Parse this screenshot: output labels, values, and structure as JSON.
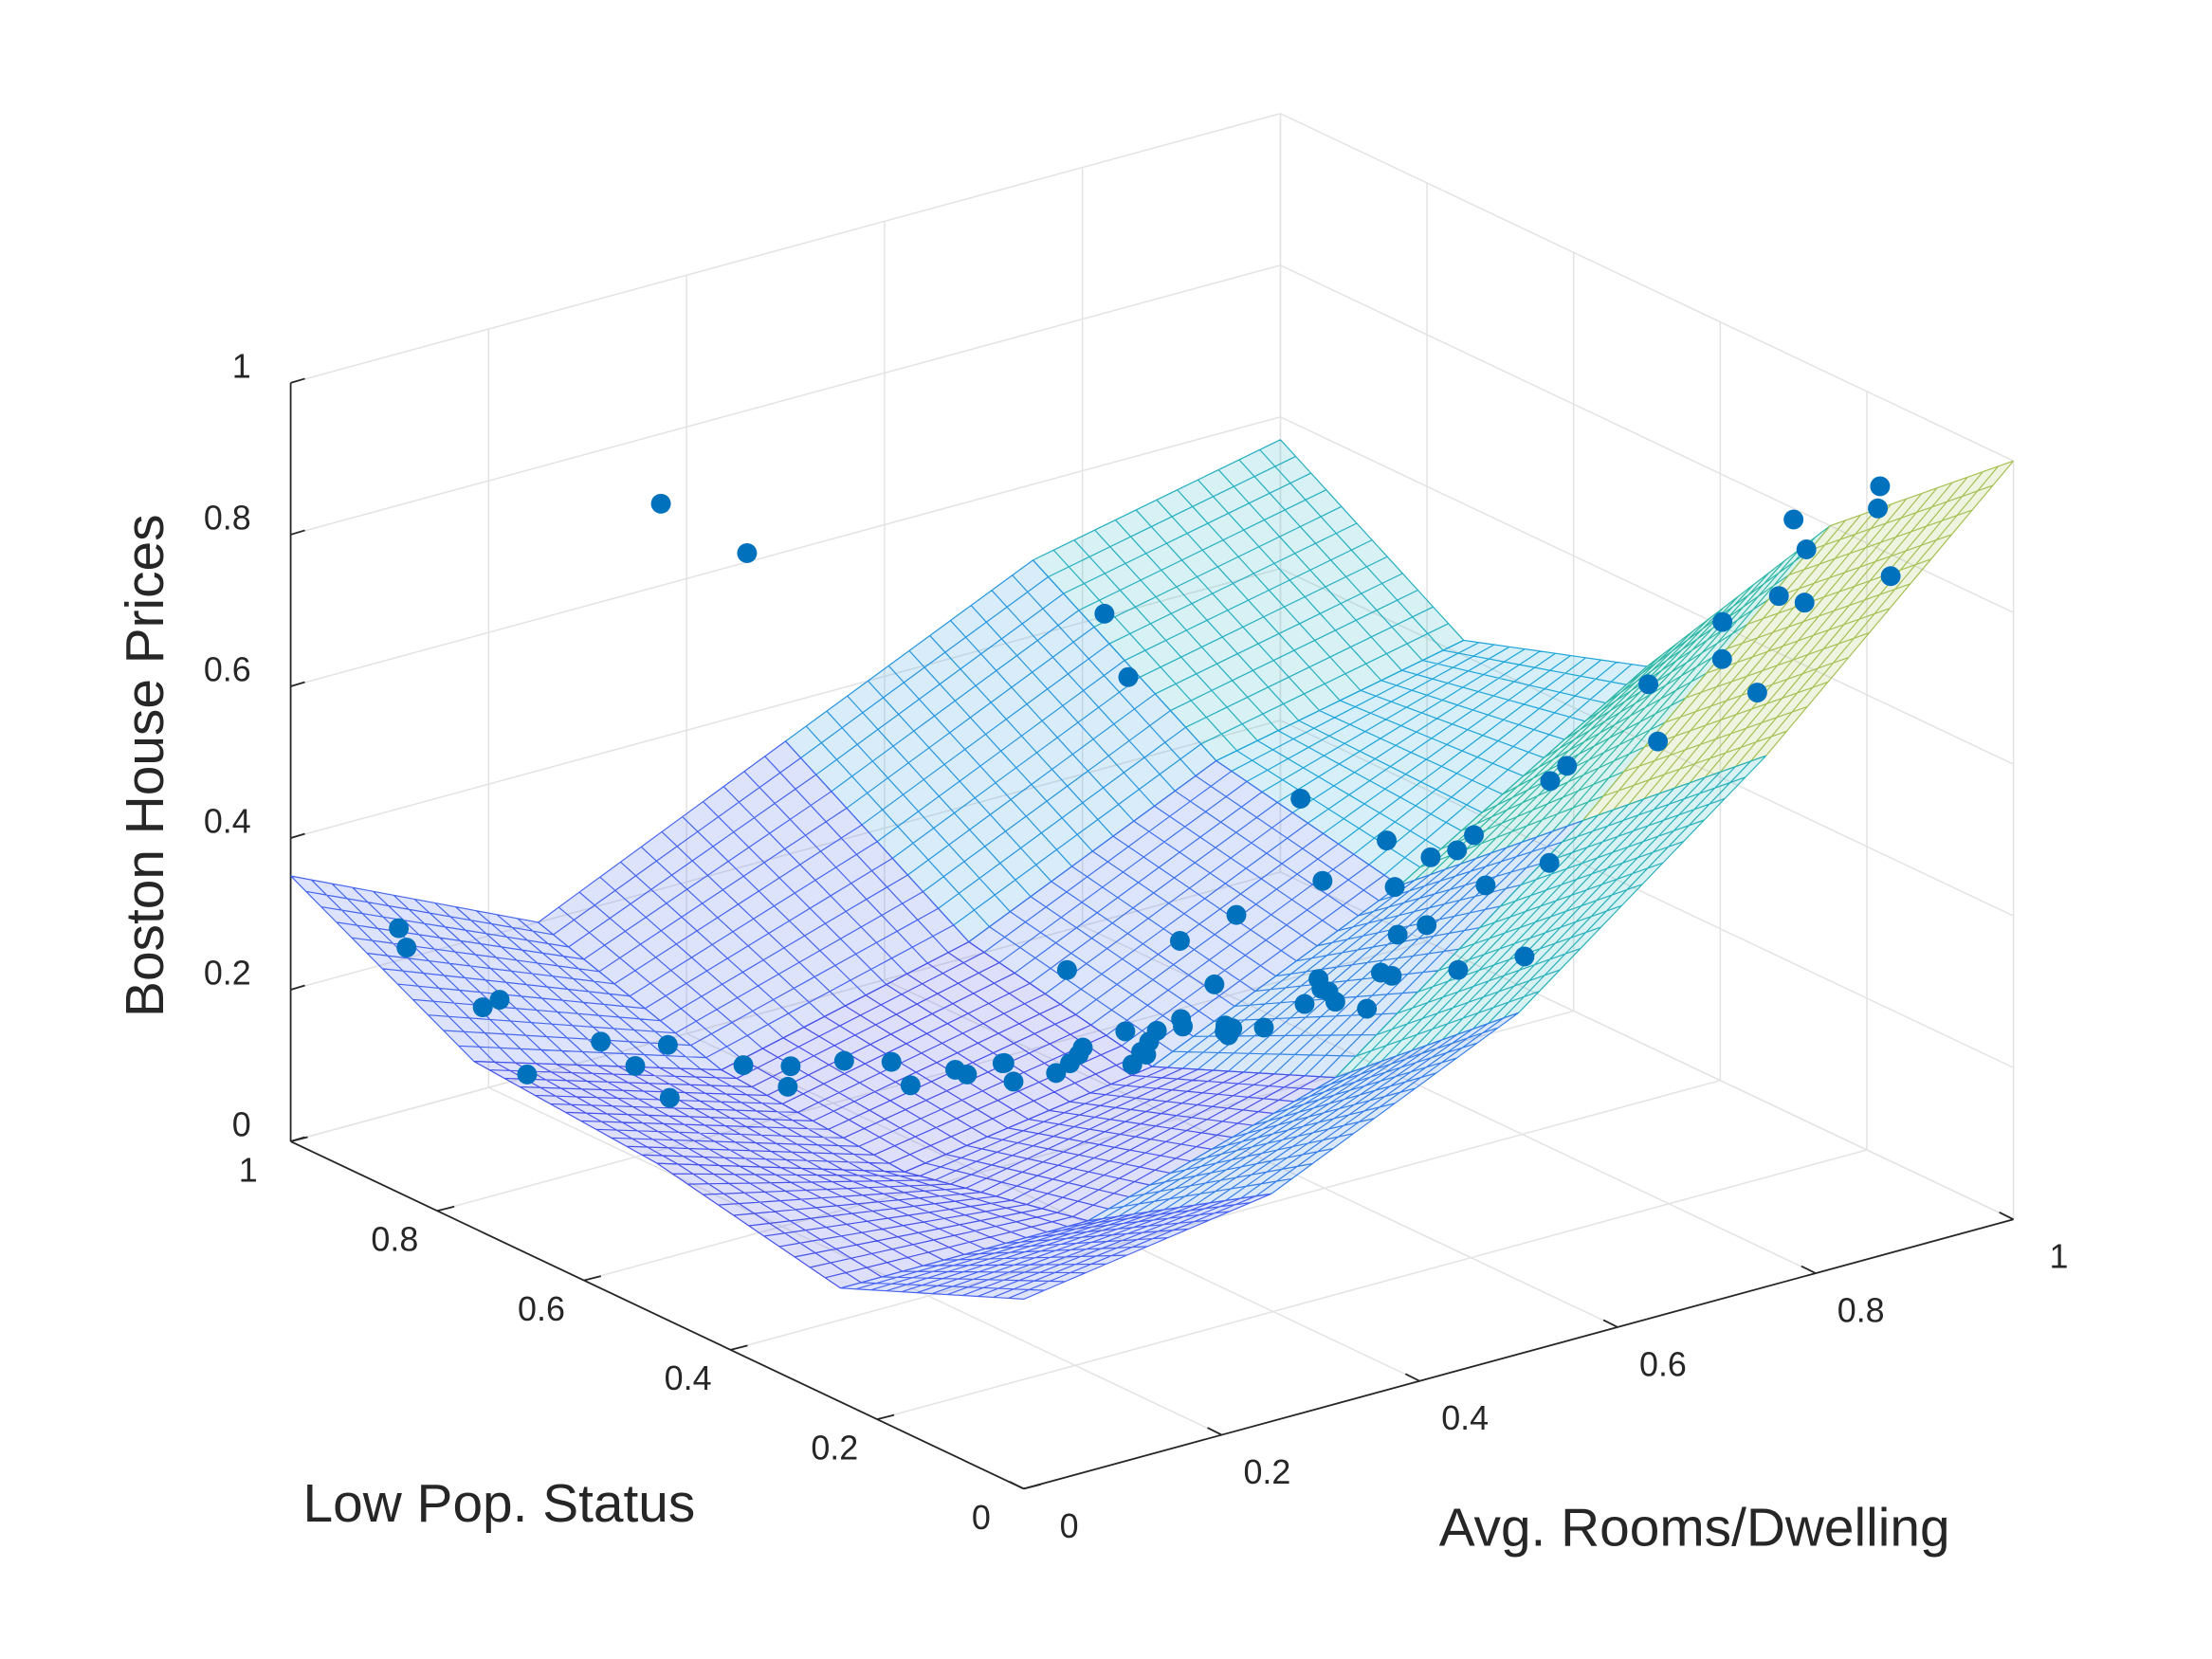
{
  "chart_data": {
    "type": "surface3d",
    "zlabel": "Boston House Prices",
    "xlabel": "Avg. Rooms/Dwelling",
    "ylabel": "Low Pop. Status",
    "xlim": [
      0,
      1
    ],
    "ylim": [
      0,
      1
    ],
    "zlim": [
      0,
      1
    ],
    "xticks": [
      0,
      0.2,
      0.4,
      0.6,
      0.8,
      1
    ],
    "yticks": [
      0,
      0.2,
      0.4,
      0.6,
      0.8,
      1
    ],
    "zticks": [
      0,
      0.2,
      0.4,
      0.6,
      0.8,
      1
    ],
    "grid": true,
    "colormap": [
      "#3b2bd0",
      "#4a5ef0",
      "#1aa8d8",
      "#3cc08a",
      "#c8c040",
      "#f9d030"
    ],
    "surface": {
      "x": [
        0,
        0.25,
        0.5,
        0.75,
        1
      ],
      "y": [
        0,
        0.25,
        0.5,
        0.75,
        1
      ],
      "z": [
        [
          0.25,
          0.3,
          0.45,
          0.7,
          1.0
        ],
        [
          0.15,
          0.15,
          0.25,
          0.5,
          0.8
        ],
        [
          0.2,
          0.1,
          0.15,
          0.3,
          0.5
        ],
        [
          0.22,
          0.12,
          0.2,
          0.35,
          0.42
        ],
        [
          0.35,
          0.2,
          0.35,
          0.5,
          0.57
        ]
      ]
    },
    "scatter": {
      "color": "#0072bd",
      "x": [
        0.9,
        0.85,
        0.8,
        0.78,
        0.75,
        0.72,
        0.7,
        0.88,
        0.8,
        0.66,
        0.83,
        0.9,
        0.95,
        0.62,
        0.68,
        0.6,
        0.58,
        0.64,
        0.55,
        0.52,
        0.57,
        0.6,
        0.5,
        0.48,
        0.53,
        0.56,
        0.45,
        0.47,
        0.5,
        0.44,
        0.42,
        0.46,
        0.4,
        0.43,
        0.49,
        0.51,
        0.38,
        0.36,
        0.41,
        0.39,
        0.35,
        0.33,
        0.37,
        0.3,
        0.28,
        0.32,
        0.25,
        0.22,
        0.2,
        0.27,
        0.18,
        0.15,
        0.12,
        0.1,
        0.08,
        0.05,
        0.3,
        0.35,
        0.55,
        0.6,
        0.65,
        0.7,
        0.45,
        0.4,
        0.5,
        0.62,
        0.58,
        0.54,
        0.48,
        0.44,
        0.52,
        0.47,
        0.42,
        0.5,
        0.38,
        0.34,
        0.46,
        0.56,
        0.6,
        0.66
      ],
      "y": [
        0.05,
        0.08,
        0.05,
        0.1,
        0.06,
        0.12,
        0.08,
        0.02,
        0.03,
        0.15,
        0.12,
        0.15,
        0.1,
        0.12,
        0.2,
        0.18,
        0.1,
        0.25,
        0.15,
        0.2,
        0.22,
        0.3,
        0.25,
        0.18,
        0.3,
        0.35,
        0.28,
        0.35,
        0.4,
        0.32,
        0.4,
        0.45,
        0.38,
        0.5,
        0.48,
        0.55,
        0.45,
        0.5,
        0.58,
        0.62,
        0.55,
        0.6,
        0.68,
        0.65,
        0.7,
        0.75,
        0.72,
        0.78,
        0.8,
        0.85,
        0.82,
        0.88,
        0.9,
        0.85,
        0.95,
        0.92,
        0.9,
        0.85,
        0.6,
        0.7,
        0.5,
        0.45,
        0.2,
        0.25,
        0.12,
        0.35,
        0.4,
        0.45,
        0.5,
        0.55,
        0.3,
        0.42,
        0.35,
        0.6,
        0.3,
        0.4,
        0.65,
        0.25,
        0.55,
        0.3
      ],
      "z": [
        0.95,
        0.9,
        0.87,
        0.82,
        0.8,
        0.75,
        0.7,
        1.0,
        0.98,
        0.65,
        0.7,
        0.78,
        0.82,
        0.55,
        0.6,
        0.5,
        0.45,
        0.52,
        0.42,
        0.4,
        0.44,
        0.38,
        0.35,
        0.38,
        0.33,
        0.3,
        0.32,
        0.28,
        0.25,
        0.3,
        0.24,
        0.22,
        0.26,
        0.2,
        0.21,
        0.17,
        0.22,
        0.18,
        0.15,
        0.13,
        0.17,
        0.14,
        0.12,
        0.16,
        0.11,
        0.1,
        0.14,
        0.08,
        0.12,
        0.1,
        0.15,
        0.09,
        0.18,
        0.22,
        0.25,
        0.3,
        0.78,
        0.72,
        0.6,
        0.62,
        0.45,
        0.4,
        0.55,
        0.5,
        0.6,
        0.3,
        0.25,
        0.2,
        0.16,
        0.14,
        0.35,
        0.26,
        0.3,
        0.12,
        0.45,
        0.38,
        0.1,
        0.48,
        0.2,
        0.47
      ]
    }
  }
}
